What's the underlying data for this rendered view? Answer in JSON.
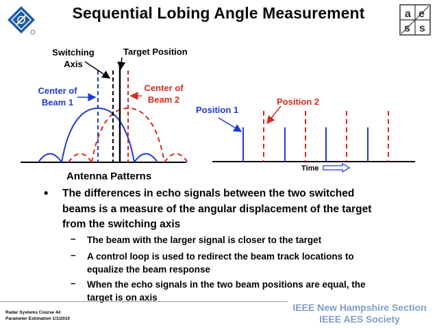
{
  "title": "Sequential Lobing Angle Measurement",
  "logos": {
    "right_letters": [
      "a",
      "e",
      "s",
      "s"
    ]
  },
  "diagram": {
    "labels": {
      "switching_axis": [
        "Switching",
        "Axis"
      ],
      "target_position": "Target Position",
      "center_beam1": [
        "Center of",
        "Beam 1"
      ],
      "center_beam2": [
        "Center of",
        "Beam 2"
      ],
      "antenna_patterns": "Antenna Patterns",
      "position1": "Position 1",
      "position2": "Position 2",
      "time": "Time"
    },
    "colors": {
      "beam1": "#1f3ad1",
      "beam2": "#d42a1f",
      "axis": "#000000"
    }
  },
  "bullets": {
    "main": "The differences in echo signals between the two switched beams is a measure of the angular displacement of the target from the switching axis",
    "subs": [
      "The beam with the larger signal is closer to the target",
      "A control loop is used to redirect the beam track locations to equalize the beam response",
      "When the echo signals in the two beam positions are equal, the target is on axis"
    ],
    "dash": "–",
    "dot": "•"
  },
  "footer": {
    "course": "Radar Systems Course   44",
    "section": "Parameter Estimation  1/1/2010",
    "org1": "IEEE New Hampshire Section",
    "org2": "IEEE AES Society"
  }
}
